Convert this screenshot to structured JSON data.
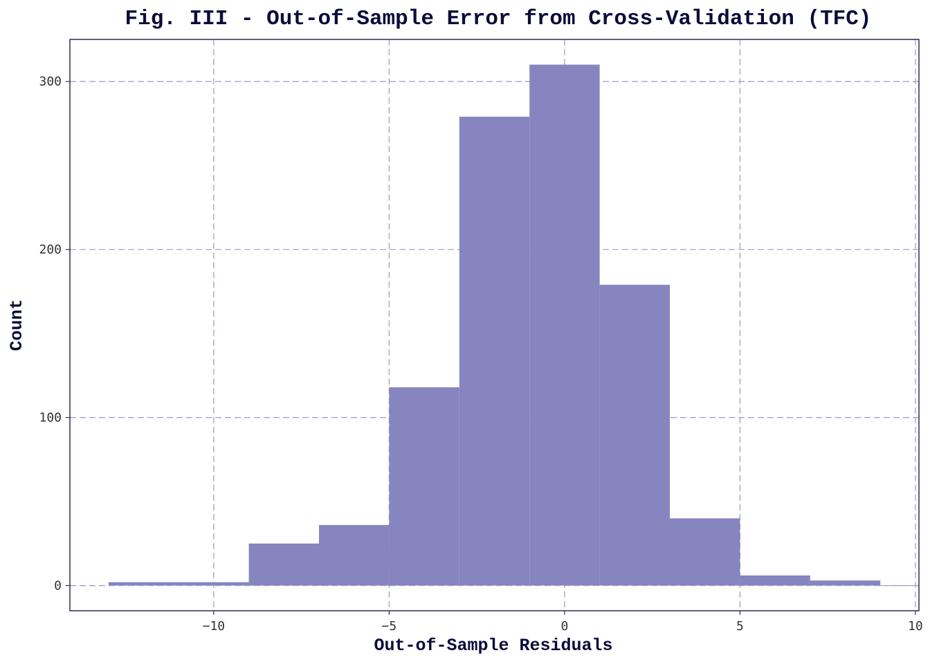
{
  "chart_data": {
    "type": "bar",
    "subtype": "histogram",
    "title": "Fig. III - Out-of-Sample Error from Cross-Validation (TFC)",
    "xlabel": "Out-of-Sample Residuals",
    "ylabel": "Count",
    "bin_width": 2,
    "bins": [
      {
        "x0": -13,
        "x1": -11,
        "count": 2
      },
      {
        "x0": -11,
        "x1": -9,
        "count": 2
      },
      {
        "x0": -9,
        "x1": -7,
        "count": 25
      },
      {
        "x0": -7,
        "x1": -5,
        "count": 36
      },
      {
        "x0": -5,
        "x1": -3,
        "count": 118
      },
      {
        "x0": -3,
        "x1": -1,
        "count": 279
      },
      {
        "x0": -1,
        "x1": 1,
        "count": 310
      },
      {
        "x0": 1,
        "x1": 3,
        "count": 179
      },
      {
        "x0": 3,
        "x1": 5,
        "count": 40
      },
      {
        "x0": 5,
        "x1": 7,
        "count": 6
      },
      {
        "x0": 7,
        "x1": 9,
        "count": 3
      }
    ],
    "xlim": [
      -14.1,
      10.1
    ],
    "ylim": [
      -15,
      325
    ],
    "x_ticks": [
      -10,
      -5,
      0,
      5,
      10
    ],
    "x_tick_labels": [
      "−10",
      "−5",
      "0",
      "5",
      "10"
    ],
    "y_ticks": [
      0,
      100,
      200,
      300
    ],
    "y_tick_labels": [
      "0",
      "100",
      "200",
      "300"
    ],
    "grid": true,
    "legend": "none",
    "bar_color": "#8685c0",
    "grid_color": "#9a9ac8",
    "text_color": "#0b0c3a"
  }
}
